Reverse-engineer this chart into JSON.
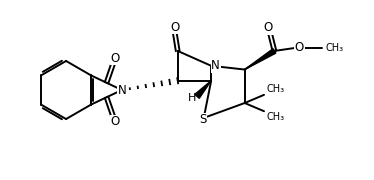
{
  "bg_color": "#ffffff",
  "line_color": "#000000",
  "figsize": [
    3.74,
    1.8
  ],
  "dpi": 100,
  "xlim": [
    0,
    10
  ],
  "ylim": [
    0,
    4.8
  ]
}
